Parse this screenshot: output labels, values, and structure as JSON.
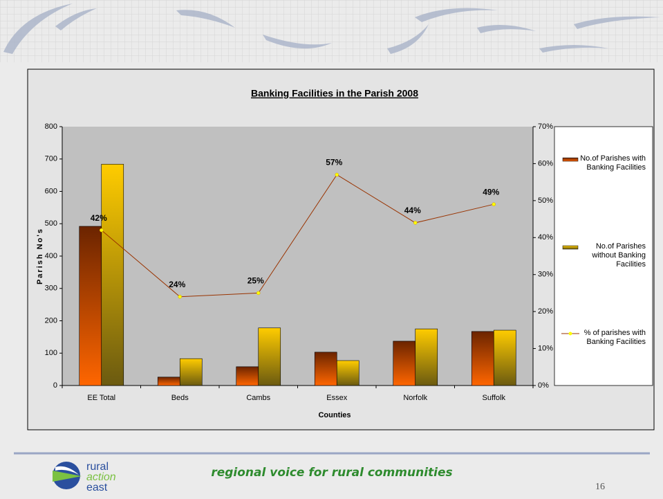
{
  "chart_data": {
    "type": "bar",
    "title": "Banking Facilities in the Parish 2008",
    "x_label": "Counties",
    "y_label": "Parish No's",
    "categories": [
      "EE Total",
      "Beds",
      "Cambs",
      "Essex",
      "Norfolk",
      "Suffolk"
    ],
    "series": [
      {
        "name": "No.of Parishes with Banking Facilities",
        "color": "#ff6600",
        "values": [
          492,
          26,
          58,
          103,
          137,
          167
        ]
      },
      {
        "name": "No.of Parishes without Banking Facilities",
        "color": "#ffcc00",
        "values": [
          684,
          83,
          178,
          77,
          175,
          171
        ]
      },
      {
        "name": "% of parishes with Banking Facilities",
        "type": "line",
        "axis": "y2",
        "color": "#993300",
        "marker_color": "#ffff00",
        "values": [
          42,
          24,
          25,
          57,
          44,
          49
        ],
        "value_labels": [
          "42%",
          "24%",
          "25%",
          "57%",
          "44%",
          "49%"
        ]
      }
    ],
    "ylim": [
      0,
      800
    ],
    "yticks": [
      0,
      100,
      200,
      300,
      400,
      500,
      600,
      700,
      800
    ],
    "y2lim": [
      0,
      70
    ],
    "y2ticks": [
      {
        "value": 0,
        "label": "0%"
      },
      {
        "value": 10,
        "label": "10%"
      },
      {
        "value": 20,
        "label": "20%"
      },
      {
        "value": 30,
        "label": "30%"
      },
      {
        "value": 40,
        "label": "40%"
      },
      {
        "value": 50,
        "label": "50%"
      },
      {
        "value": 60,
        "label": "60%"
      },
      {
        "value": 70,
        "label": "70%"
      }
    ],
    "grid": false,
    "legend": "right"
  },
  "footer": {
    "logo": [
      "rural",
      "action",
      "east"
    ],
    "tagline": "regional voice for rural communities",
    "page_number": "16"
  }
}
